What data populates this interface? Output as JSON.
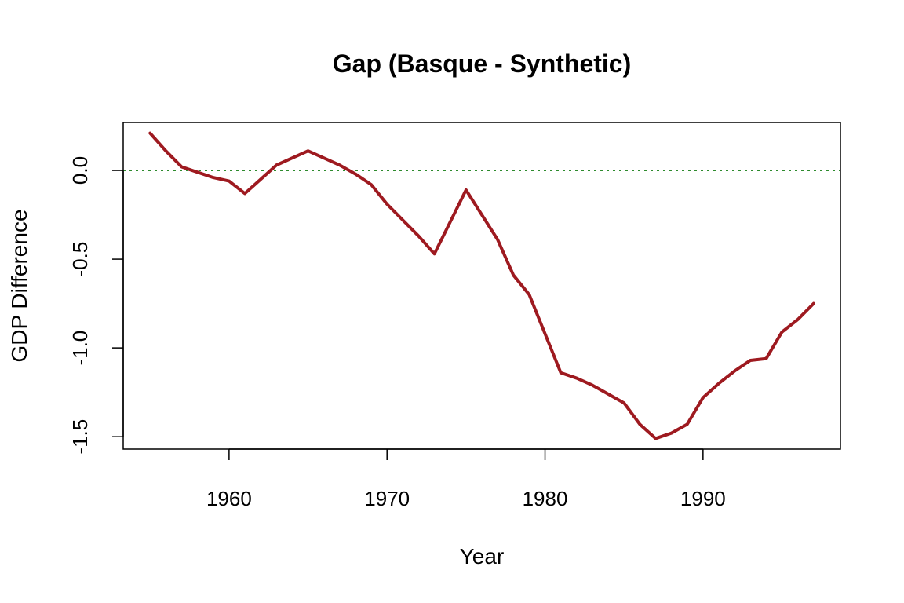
{
  "chart_data": {
    "type": "line",
    "title": "Gap (Basque - Synthetic)",
    "xlabel": "Year",
    "ylabel": "GDP Difference",
    "xlim": [
      1953.3,
      1998.7
    ],
    "ylim": [
      -1.57,
      0.27
    ],
    "x_ticks": [
      1960,
      1970,
      1980,
      1990
    ],
    "y_ticks": [
      -1.5,
      -1.0,
      -0.5,
      0.0
    ],
    "y_tick_labels": [
      "-1.5",
      "-1.0",
      "-0.5",
      "0.0"
    ],
    "grid": false,
    "reference_line": {
      "y": 0.0,
      "style": "dotted",
      "color": "#2e8b2e"
    },
    "series": [
      {
        "color": "#9e1a20",
        "x": [
          1955,
          1956,
          1957,
          1958,
          1959,
          1960,
          1961,
          1962,
          1963,
          1964,
          1965,
          1966,
          1967,
          1968,
          1969,
          1970,
          1971,
          1972,
          1973,
          1974,
          1975,
          1976,
          1977,
          1978,
          1979,
          1980,
          1981,
          1982,
          1983,
          1984,
          1985,
          1986,
          1987,
          1988,
          1989,
          1990,
          1991,
          1992,
          1993,
          1994,
          1995,
          1996,
          1997
        ],
        "y": [
          0.21,
          0.11,
          0.02,
          -0.01,
          -0.04,
          -0.06,
          -0.13,
          -0.05,
          0.03,
          0.07,
          0.11,
          0.07,
          0.03,
          -0.02,
          -0.08,
          -0.19,
          -0.28,
          -0.37,
          -0.47,
          -0.29,
          -0.11,
          -0.25,
          -0.39,
          -0.59,
          -0.7,
          -0.92,
          -1.14,
          -1.17,
          -1.21,
          -1.26,
          -1.31,
          -1.43,
          -1.51,
          -1.48,
          -1.43,
          -1.28,
          -1.2,
          -1.13,
          -1.07,
          -1.06,
          -0.91,
          -0.84,
          -0.75
        ]
      }
    ]
  }
}
